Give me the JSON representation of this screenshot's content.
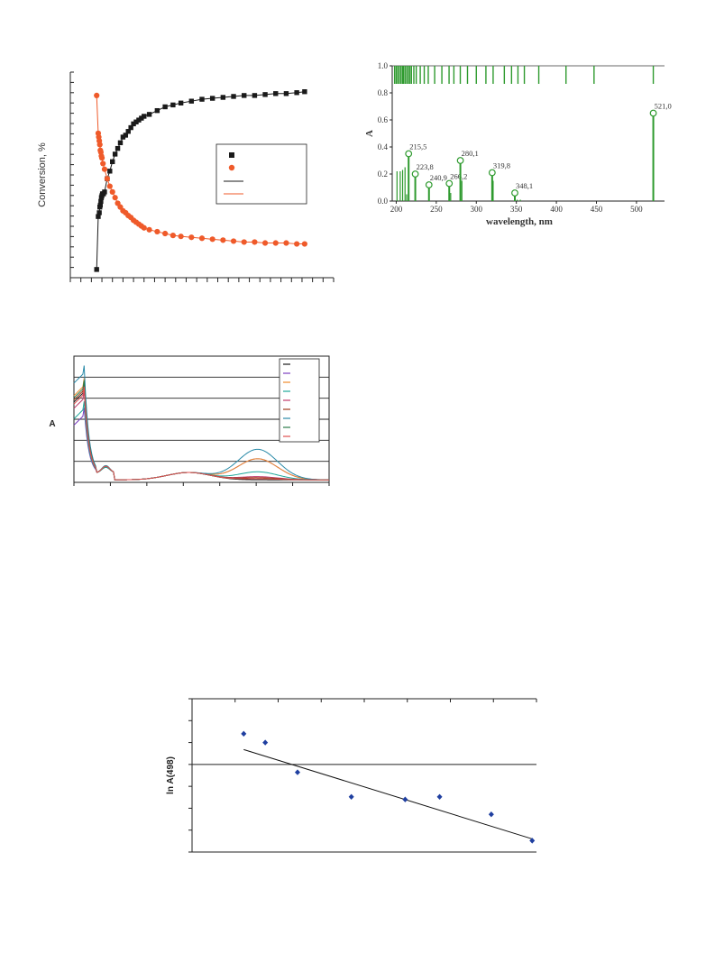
{
  "chart_data": [
    {
      "id": "conversion",
      "type": "scatter",
      "title": "",
      "xlabel": "",
      "ylabel": "Conversion, %",
      "xlim": [
        0,
        50
      ],
      "ylim": [
        0,
        100
      ],
      "legend_placement": "center-right",
      "series": [
        {
          "marker": "square",
          "color": "#1a1a1a",
          "x": [
            5.0,
            5.3,
            5.5,
            5.6,
            5.7,
            5.8,
            5.9,
            6.0,
            6.1,
            6.3,
            6.5,
            7.0,
            7.5,
            8.0,
            8.5,
            9.0,
            9.5,
            10.0,
            10.5,
            11.0,
            11.5,
            12.0,
            12.5,
            13.0,
            13.5,
            14.0,
            15.0,
            16.5,
            18.0,
            19.5,
            21.0,
            23.0,
            25.0,
            27.0,
            29.0,
            31.0,
            33.0,
            35.0,
            37.0,
            39.0,
            41.0,
            43.0,
            44.5
          ],
          "y": [
            0,
            28,
            30,
            33,
            34,
            36,
            38,
            39,
            40,
            40,
            41,
            48,
            52,
            57,
            61,
            64,
            67,
            70,
            71,
            73,
            75,
            77,
            78,
            79,
            80,
            81,
            82,
            84,
            86,
            87,
            88,
            89,
            90,
            90.5,
            91,
            91.5,
            92,
            92,
            92.5,
            93,
            93,
            93.5,
            94
          ]
        },
        {
          "marker": "circle",
          "color": "#ef5a2a",
          "x": [
            5.0,
            5.3,
            5.4,
            5.5,
            5.6,
            5.7,
            5.8,
            5.9,
            6.0,
            6.2,
            6.5,
            7.0,
            7.5,
            8.0,
            8.5,
            9.0,
            9.5,
            10.0,
            10.5,
            11.0,
            11.5,
            12.0,
            12.5,
            13.0,
            13.5,
            14.0,
            15.0,
            16.5,
            18.0,
            19.5,
            21.0,
            23.0,
            25.0,
            27.0,
            29.0,
            31.0,
            33.0,
            35.0,
            37.0,
            39.0,
            41.0,
            43.0,
            44.5
          ],
          "y": [
            92,
            72,
            70,
            68,
            66,
            63,
            62,
            60,
            59,
            56,
            53,
            48,
            44,
            41,
            38,
            35,
            33,
            31,
            30,
            28.5,
            27.5,
            26,
            25,
            24,
            23,
            22,
            21,
            20,
            19,
            18,
            17.5,
            17,
            16.5,
            16,
            15.5,
            15,
            14.5,
            14.5,
            14,
            14,
            14,
            13.5,
            13.5
          ]
        },
        {
          "line": true,
          "color": "#1a1a1a",
          "of": 0
        },
        {
          "line": true,
          "color": "#ef5a2a",
          "of": 1
        }
      ]
    },
    {
      "id": "stick",
      "type": "bar",
      "xlabel": "wavelength, nm",
      "ylabel": "A",
      "xlim": [
        195,
        535
      ],
      "ylim": [
        0,
        1.0
      ],
      "xticks": [
        200,
        250,
        300,
        350,
        400,
        450,
        500
      ],
      "yticks": [
        "0.0",
        "0.2",
        "0.4",
        "0.6",
        "0.8",
        "1.0"
      ],
      "color": "#2e9a2e",
      "peaks": [
        {
          "x": 215.5,
          "y": 0.35,
          "label": "215,5"
        },
        {
          "x": 223.8,
          "y": 0.2,
          "label": "223,8"
        },
        {
          "x": 240.9,
          "y": 0.12,
          "label": "240,9"
        },
        {
          "x": 266.2,
          "y": 0.13,
          "label": "266,2"
        },
        {
          "x": 280.1,
          "y": 0.3,
          "label": "280,1"
        },
        {
          "x": 319.8,
          "y": 0.21,
          "label": "319,8"
        },
        {
          "x": 348.1,
          "y": 0.06,
          "label": "348,1"
        },
        {
          "x": 521.0,
          "y": 0.65,
          "label": "521,0"
        }
      ],
      "minor_sticks": [
        {
          "x": 201,
          "y": 0.22
        },
        {
          "x": 205,
          "y": 0.22
        },
        {
          "x": 208,
          "y": 0.23
        },
        {
          "x": 211,
          "y": 0.25
        },
        {
          "x": 213,
          "y": 0.05
        },
        {
          "x": 241,
          "y": 0.09
        },
        {
          "x": 268,
          "y": 0.06
        },
        {
          "x": 282,
          "y": 0.15
        },
        {
          "x": 321,
          "y": 0.15
        },
        {
          "x": 351,
          "y": 0.01
        },
        {
          "x": 355,
          "y": 0.01
        }
      ],
      "rug": [
        198,
        200,
        202,
        204,
        206,
        208,
        209,
        211,
        213,
        215,
        217,
        219,
        222,
        225,
        230,
        235,
        240,
        248,
        257,
        266,
        272,
        280,
        289,
        300,
        312,
        321,
        335,
        344,
        352,
        360,
        378,
        412,
        447,
        521
      ]
    },
    {
      "id": "spectra",
      "type": "line",
      "ylabel": "A",
      "xlim": [
        0,
        100
      ],
      "ylim": [
        0,
        6
      ],
      "grid": "horizontal",
      "legend_placement": "top-right",
      "series": [
        {
          "color": "#1a1a1a",
          "peak1": 4.3,
          "shoulder": 0.8,
          "band": 0.0
        },
        {
          "color": "#7a3fbf",
          "peak1": 3.2,
          "shoulder": 0.85,
          "band": 1.0
        },
        {
          "color": "#ef8a2a",
          "peak1": 4.6,
          "shoulder": 0.9,
          "band": 1.0
        },
        {
          "color": "#1ea89a",
          "peak1": 3.5,
          "shoulder": 0.75,
          "band": 0.38
        },
        {
          "color": "#c03a6a",
          "peak1": 4.0,
          "shoulder": 0.9,
          "band": 0.15
        },
        {
          "color": "#a03a1a",
          "peak1": 4.4,
          "shoulder": 0.95,
          "band": 0.1
        },
        {
          "color": "#2a8aa8",
          "peak1": 5.2,
          "shoulder": 1.0,
          "band": 1.45
        },
        {
          "color": "#2a7a4a",
          "peak1": 4.5,
          "shoulder": 0.9,
          "band": 0.05
        },
        {
          "color": "#e05050",
          "peak1": 4.2,
          "shoulder": 0.9,
          "band": 0.05
        }
      ]
    },
    {
      "id": "lnA",
      "type": "scatter",
      "ylabel": "ln A(498)",
      "xlim": [
        0,
        8
      ],
      "ylim": [
        -4.0,
        -2.25
      ],
      "marker_color": "#1f3fa0",
      "x": [
        1.2,
        1.7,
        2.45,
        3.7,
        4.95,
        5.75,
        6.95,
        7.9
      ],
      "y": [
        -2.65,
        -2.75,
        -3.09,
        -3.37,
        -3.4,
        -3.37,
        -3.57,
        -3.87
      ],
      "fit": {
        "x": [
          1.2,
          7.9
        ],
        "y": [
          -2.83,
          -3.85
        ]
      }
    }
  ]
}
